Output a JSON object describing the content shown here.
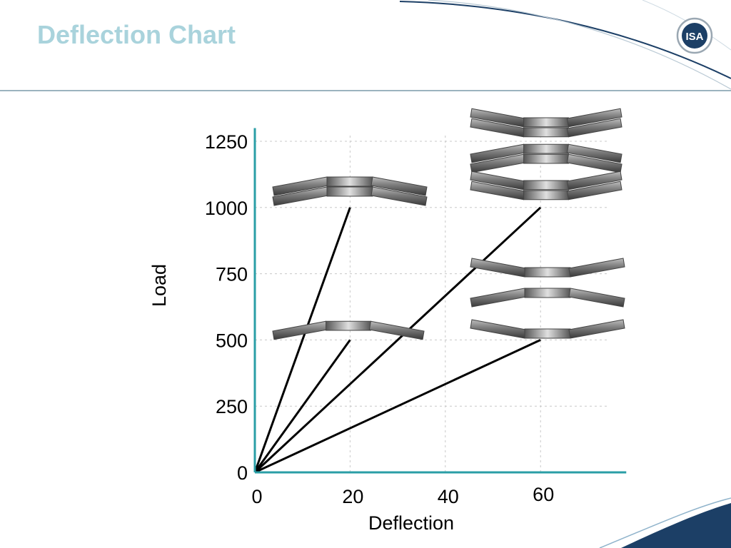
{
  "title": "Deflection Chart",
  "logo": {
    "text": "ISA",
    "icon": "isa-logo-icon"
  },
  "colors": {
    "title": "#a9d3dc",
    "axis": "#2a9ea6",
    "grid": "#c8c8c8",
    "lines": "#000000",
    "header_rule": "#7a9aa8",
    "swoosh": "#1c3f66"
  },
  "chart_data": {
    "type": "line",
    "title": "",
    "xlabel": "Deflection",
    "ylabel": "Load",
    "xlim": [
      0,
      78
    ],
    "ylim": [
      0,
      1300
    ],
    "x_ticks": [
      0,
      20,
      40,
      60
    ],
    "y_ticks": [
      0,
      250,
      500,
      750,
      1000,
      1250
    ],
    "grid": true,
    "series": [
      {
        "x": [
          0,
          20
        ],
        "y": [
          0,
          1000
        ]
      },
      {
        "x": [
          0,
          20
        ],
        "y": [
          0,
          500
        ]
      },
      {
        "x": [
          0,
          60
        ],
        "y": [
          0,
          1000
        ]
      },
      {
        "x": [
          0,
          60
        ],
        "y": [
          0,
          500
        ]
      }
    ],
    "annotations": [
      {
        "icon": "disc-spring-double-parallel-icon",
        "series": 0
      },
      {
        "icon": "disc-spring-single-icon",
        "series": 1
      },
      {
        "icon": "disc-spring-series-parallel-stack-icon",
        "series": 2
      },
      {
        "icon": "disc-spring-series-pair-icon",
        "series": 3
      }
    ]
  }
}
